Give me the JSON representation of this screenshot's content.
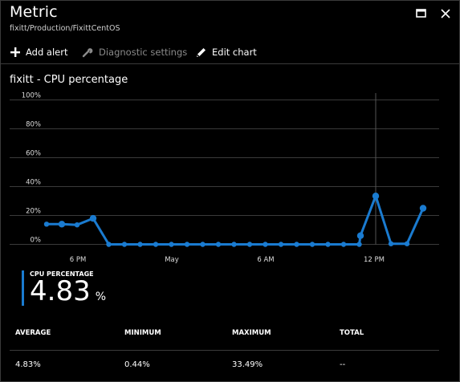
{
  "header": {
    "title": "Metric",
    "breadcrumb": "fixitt/Production/FixittCentOS",
    "maximize_icon": "maximize-icon",
    "close_icon": "close-icon"
  },
  "toolbar": {
    "add_alert": "Add alert",
    "diagnostic_settings": "Diagnostic settings",
    "edit_chart": "Edit chart"
  },
  "colors": {
    "series": "#1a7bd0",
    "background": "#000000",
    "grid": "#3a3a3a"
  },
  "chart_data": {
    "type": "line",
    "title": "fixitt - CPU percentage",
    "xlabel": "",
    "ylabel": "",
    "y_ticks": [
      "0%",
      "20%",
      "40%",
      "60%",
      "80%",
      "100%"
    ],
    "x_tick_labels": [
      "6 PM",
      "May",
      "6 AM",
      "12 PM"
    ],
    "ylim": [
      0,
      100
    ],
    "grid": true,
    "legend": "none",
    "series": [
      {
        "values": [
          14,
          14,
          13.5,
          18,
          0,
          0,
          0,
          0,
          0,
          0,
          0,
          0,
          0,
          0,
          0,
          0,
          0,
          0,
          0,
          0,
          0,
          6,
          33.49,
          0.44,
          0.44,
          25
        ]
      }
    ]
  },
  "summary": {
    "label": "CPU PERCENTAGE",
    "value": "4.83",
    "unit": "%"
  },
  "stats": {
    "headers": [
      "AVERAGE",
      "MINIMUM",
      "MAXIMUM",
      "TOTAL"
    ],
    "values": [
      "4.83%",
      "0.44%",
      "33.49%",
      "--"
    ]
  }
}
